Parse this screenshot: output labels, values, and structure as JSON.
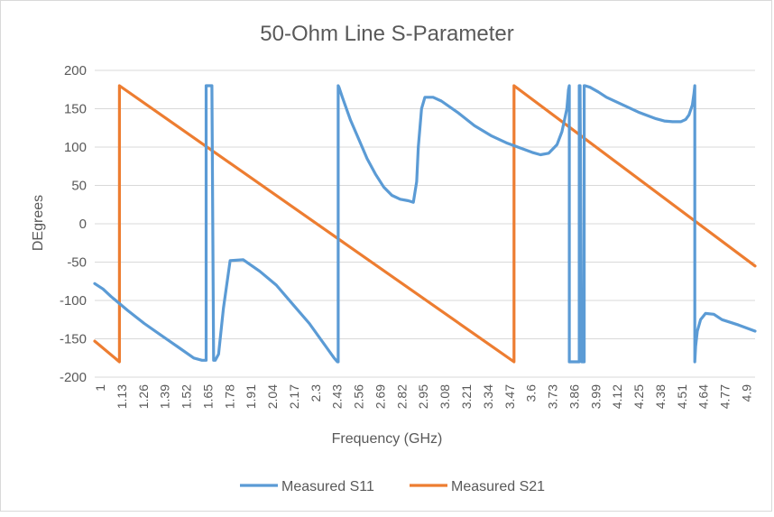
{
  "chart_data": {
    "type": "line",
    "title": "50-Ohm Line S-Parameter",
    "xlabel": "Frequency (GHz)",
    "ylabel": "DEgrees",
    "ylim": [
      -200,
      200
    ],
    "yticks": [
      200,
      150,
      100,
      50,
      0,
      -50,
      -100,
      -150,
      -200
    ],
    "xlim": [
      1,
      5
    ],
    "xtick_labels": [
      "1",
      "1.13",
      "1.26",
      "1.39",
      "1.52",
      "1.65",
      "1.78",
      "1.91",
      "2.04",
      "2.17",
      "2.3",
      "2.43",
      "2.56",
      "2.69",
      "2.82",
      "2.95",
      "3.08",
      "3.21",
      "3.34",
      "3.47",
      "3.6",
      "3.73",
      "3.86",
      "3.99",
      "4.12",
      "4.25",
      "4.38",
      "4.51",
      "4.64",
      "4.77",
      "4.9"
    ],
    "grid": "horizontal",
    "legend_position": "bottom",
    "series": [
      {
        "name": "Measured S11",
        "color": "#5b9bd5",
        "x": [
          1.0,
          1.05,
          1.1,
          1.2,
          1.3,
          1.4,
          1.5,
          1.6,
          1.65,
          1.67,
          1.675,
          1.675,
          1.68,
          1.7,
          1.71,
          1.72,
          1.73,
          1.75,
          1.78,
          1.82,
          1.9,
          2.0,
          2.1,
          2.2,
          2.3,
          2.4,
          2.45,
          2.47,
          2.475,
          2.475,
          2.48,
          2.5,
          2.55,
          2.6,
          2.65,
          2.7,
          2.75,
          2.8,
          2.85,
          2.9,
          2.93,
          2.95,
          2.96,
          2.98,
          3.0,
          3.05,
          3.1,
          3.2,
          3.3,
          3.4,
          3.5,
          3.6,
          3.65,
          3.7,
          3.75,
          3.8,
          3.83,
          3.86,
          3.87,
          3.875,
          3.875,
          3.88,
          3.9,
          3.93,
          3.935,
          3.935,
          3.94,
          3.95,
          3.96,
          3.965,
          3.965,
          3.97,
          4.0,
          4.05,
          4.1,
          4.2,
          4.3,
          4.4,
          4.45,
          4.5,
          4.55,
          4.58,
          4.6,
          4.62,
          4.63,
          4.635,
          4.635,
          4.64,
          4.65,
          4.67,
          4.7,
          4.75,
          4.8,
          4.9,
          5.0
        ],
        "y": [
          -78,
          -85,
          -95,
          -113,
          -130,
          -145,
          -160,
          -175,
          -178,
          -178,
          -178,
          180,
          180,
          180,
          180,
          -178,
          -178,
          -170,
          -110,
          -48,
          -47,
          -62,
          -80,
          -105,
          -130,
          -160,
          -175,
          -180,
          -180,
          180,
          178,
          165,
          135,
          110,
          85,
          65,
          48,
          37,
          32,
          30,
          28,
          55,
          100,
          150,
          165,
          165,
          160,
          145,
          128,
          115,
          105,
          97,
          93,
          90,
          92,
          103,
          120,
          150,
          175,
          180,
          -180,
          -180,
          -180,
          -180,
          -180,
          180,
          180,
          -180,
          -180,
          -180,
          180,
          180,
          178,
          172,
          165,
          155,
          145,
          137,
          134,
          133,
          133,
          136,
          142,
          155,
          170,
          180,
          -180,
          -160,
          -140,
          -125,
          -117,
          -118,
          -125,
          -132,
          -140
        ]
      },
      {
        "name": "Measured S21",
        "color": "#ed7d31",
        "x": [
          1.0,
          1.15,
          1.15,
          3.54,
          3.54,
          5.0
        ],
        "y": [
          -153,
          -180,
          180,
          -180,
          180,
          -55
        ]
      }
    ]
  }
}
